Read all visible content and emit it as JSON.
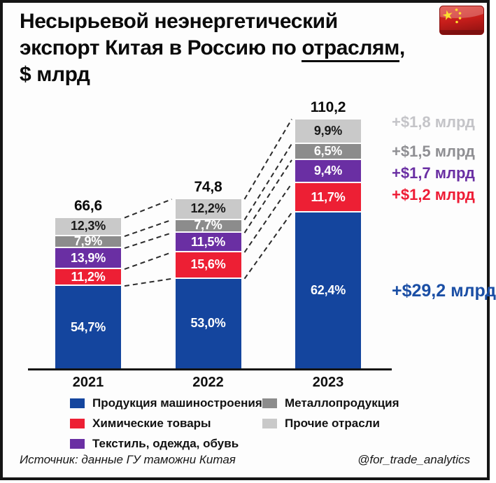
{
  "title": {
    "line1": "Несырьевой неэнергетический",
    "line2_prefix": "экспорт Китая в Россию по ",
    "line2_underline": "отраслям",
    "line2_suffix": ",",
    "line3": "$ млрд"
  },
  "flag": {
    "country": "Китай",
    "red": "#c81e1b",
    "yellow": "#fcdf2e"
  },
  "chart_data": {
    "type": "bar",
    "stacked": true,
    "title": "Несырьевой неэнергетический экспорт Китая в Россию по отраслям, $ млрд",
    "unit": "$ млрд",
    "categories": [
      "2021",
      "2022",
      "2023"
    ],
    "totals": [
      66.6,
      74.8,
      110.2
    ],
    "totals_display": [
      "66,6",
      "74,8",
      "110,2"
    ],
    "grid": false,
    "legend_position": "bottom",
    "legend_columns": [
      [
        0,
        1,
        2
      ],
      [
        3,
        4
      ]
    ],
    "series": [
      {
        "name": "Продукция машиностроения",
        "color": "#14459e",
        "label_color": "#ffffff",
        "values_pct": [
          54.7,
          53.0,
          62.4
        ],
        "labels": [
          "54,7%",
          "53,0%",
          "62,4%"
        ],
        "delta_label": "+$29,2 млрд",
        "delta_color": "#1b4fa5"
      },
      {
        "name": "Химические товары",
        "color": "#ed1f34",
        "label_color": "#ffffff",
        "values_pct": [
          11.2,
          15.6,
          11.7
        ],
        "labels": [
          "11,2%",
          "15,6%",
          "11,7%"
        ],
        "delta_label": "+$1,2 млрд",
        "delta_color": "#ee1c35"
      },
      {
        "name": "Текстиль, одежда, обувь",
        "color": "#6a2fa3",
        "label_color": "#ffffff",
        "values_pct": [
          13.9,
          11.5,
          9.4
        ],
        "labels": [
          "13,9%",
          "11,5%",
          "9,4%"
        ],
        "delta_label": "+$1,7 млрд",
        "delta_color": "#6a2fa3"
      },
      {
        "name": "Металлопродукция",
        "color": "#8c8c8c",
        "label_color": "#ffffff",
        "values_pct": [
          7.9,
          7.7,
          6.5
        ],
        "labels": [
          "7,9%",
          "7,7%",
          "6,5%"
        ],
        "delta_label": "+$1,5 млрд",
        "delta_color": "#8f8f93"
      },
      {
        "name": "Прочие отрасли",
        "color": "#c9c9c9",
        "label_color": "#1a1a1a",
        "values_pct": [
          12.3,
          12.2,
          9.9
        ],
        "labels": [
          "12,3%",
          "12,2%",
          "9,9%"
        ],
        "delta_label": "+$1,8 млрд",
        "delta_color": "#c4c4c8"
      }
    ]
  },
  "footer": {
    "source": "Источник: данные ГУ таможни Китая",
    "handle": "@for_trade_analytics"
  }
}
